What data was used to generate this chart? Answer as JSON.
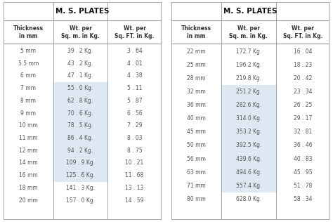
{
  "title": "M. S. PLATES",
  "col_headers": [
    "Thickness\nin mm",
    "Wt. per\nSq. m. in Kg.",
    "Wt. per\nSq. FT. in Kg."
  ],
  "left_table": {
    "thickness": [
      "5 mm",
      "5.5 mm",
      "6 mm",
      "7 mm",
      "8 mm",
      "9 mm",
      "10 mm",
      "11 mm",
      "12 mm",
      "14 mm",
      "16 mm",
      "18 mm",
      "20 mm"
    ],
    "wt_sqm": [
      "39 . 2 Kg.",
      "43 . 2 Kg.",
      "47 . 1 Kg.",
      "55 . 0 Kg.",
      "62 . 8 Kg.",
      "70 . 6 Kg.",
      "78 . 5 Kg.",
      "86 . 4 Kg.",
      "94 . 2 Kg.",
      "109 . 9 Kg.",
      "125 . 6 Kg.",
      "141 . 3 Kg.",
      "157 . 0 Kg."
    ],
    "wt_sqft": [
      "3 . 64",
      "4 . 01",
      "4 . 38",
      "5 . 11",
      "5 . 87",
      "6 . 56",
      "7 . 29",
      "8 . 03",
      "8 . 75",
      "10 . 21",
      "11 . 68",
      "13 . 13",
      "14 . 59"
    ],
    "highlight_rows": [
      3,
      4,
      5,
      6,
      7,
      8,
      9,
      10
    ]
  },
  "right_table": {
    "thickness": [
      "22 mm",
      "25 mm",
      "28 mm",
      "32 mm",
      "36 mm",
      "40 mm",
      "45 mm",
      "50 mm",
      "56 mm",
      "63 mm",
      "71 mm",
      "80 mm"
    ],
    "wt_sqm": [
      "172.7 Kg.",
      "196.2 Kg.",
      "219.8 Kg.",
      "251.2 Kg.",
      "282.6 Kg.",
      "314.0 Kg.",
      "353.2 Kg.",
      "392.5 Kg.",
      "439.6 Kg.",
      "494.6 Kg.",
      "557.4 Kg.",
      "628.0 Kg."
    ],
    "wt_sqft": [
      "16 . 04",
      "18 . 23",
      "20 . 42",
      "23 . 34",
      "26 . 25",
      "29 . 17",
      "32 . 81",
      "36 . 46",
      "40 . 83",
      "45 . 95",
      "51 . 78",
      "58 . 34"
    ],
    "highlight_rows": [
      3,
      4,
      5,
      6,
      7,
      8,
      9,
      10
    ]
  },
  "highlight_color": "#d8e4f0",
  "border_color": "#999999",
  "text_color": "#555555",
  "header_color": "#333333",
  "title_color": "#111111",
  "figsize": [
    4.74,
    3.16
  ],
  "dpi": 100
}
